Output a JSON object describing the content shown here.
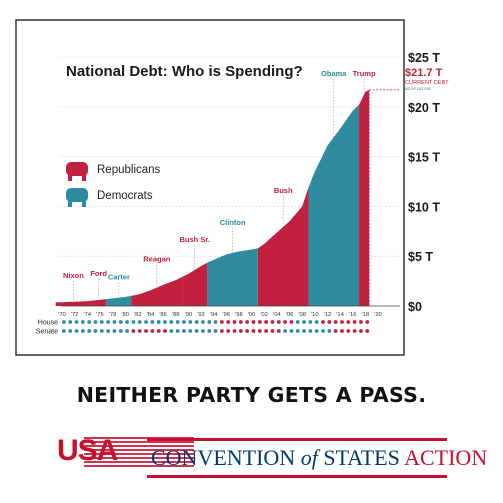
{
  "chart_data": {
    "type": "area",
    "title": "National Debt: Who is Spending?",
    "x_tick_labels": [
      "'70",
      "'72",
      "'74",
      "'76",
      "'78",
      "'80",
      "'82",
      "'84",
      "'86",
      "'88",
      "'90",
      "'92",
      "'94",
      "'96",
      "'98",
      "'00",
      "'02",
      "'04",
      "'06",
      "'08",
      "'10",
      "'12",
      "'14",
      "'16",
      "'18",
      "'20"
    ],
    "y_tick_labels": [
      "$0",
      "$5 T",
      "$10 T",
      "$15 T",
      "$20 T",
      "$25 T"
    ],
    "ylim": [
      0,
      25
    ],
    "xlim": [
      1969,
      2020
    ],
    "series": [
      {
        "name": "Republicans",
        "color": "#c0213e"
      },
      {
        "name": "Democrats",
        "color": "#2f8ca0"
      }
    ],
    "debt": [
      [
        1969,
        0.37
      ],
      [
        1970,
        0.38
      ],
      [
        1972,
        0.43
      ],
      [
        1974,
        0.48
      ],
      [
        1976,
        0.62
      ],
      [
        1978,
        0.77
      ],
      [
        1980,
        0.91
      ],
      [
        1982,
        1.14
      ],
      [
        1984,
        1.57
      ],
      [
        1986,
        2.12
      ],
      [
        1988,
        2.6
      ],
      [
        1990,
        3.23
      ],
      [
        1992,
        4.0
      ],
      [
        1993,
        4.35
      ],
      [
        1994,
        4.64
      ],
      [
        1996,
        5.18
      ],
      [
        1998,
        5.48
      ],
      [
        2000,
        5.67
      ],
      [
        2001,
        5.8
      ],
      [
        2002,
        6.23
      ],
      [
        2004,
        7.38
      ],
      [
        2006,
        8.5
      ],
      [
        2008,
        10.0
      ],
      [
        2009,
        11.9
      ],
      [
        2010,
        13.5
      ],
      [
        2012,
        16.1
      ],
      [
        2014,
        17.8
      ],
      [
        2016,
        19.6
      ],
      [
        2017,
        20.2
      ],
      [
        2018,
        21.5
      ],
      [
        2018.6,
        21.7
      ]
    ],
    "terms": [
      {
        "president": "Nixon",
        "party": "R",
        "start": 1969,
        "end": 1974.6
      },
      {
        "president": "Ford",
        "party": "R",
        "start": 1974.6,
        "end": 1977
      },
      {
        "president": "Carter",
        "party": "D",
        "start": 1977,
        "end": 1981
      },
      {
        "president": "Reagan",
        "party": "R",
        "start": 1981,
        "end": 1989
      },
      {
        "president": "Bush Sr.",
        "party": "R",
        "start": 1989,
        "end": 1993
      },
      {
        "president": "Clinton",
        "party": "D",
        "start": 1993,
        "end": 2001
      },
      {
        "president": "Bush",
        "party": "R",
        "start": 2001,
        "end": 2009
      },
      {
        "president": "Obama",
        "party": "D",
        "start": 2009,
        "end": 2017
      },
      {
        "president": "Trump",
        "party": "R",
        "start": 2017,
        "end": 2018.6
      }
    ],
    "annotation": {
      "value": "$21.7 T",
      "label": "CURRENT DEBT",
      "note": "AS OF 11/27/18"
    },
    "congress": {
      "house_label": "House",
      "senate_label": "Senate",
      "house": [
        "D",
        "D",
        "D",
        "D",
        "D",
        "D",
        "D",
        "D",
        "D",
        "D",
        "D",
        "D",
        "D",
        "R",
        "R",
        "R",
        "R",
        "R",
        "R",
        "D",
        "D",
        "R",
        "R",
        "R",
        "R"
      ],
      "senate": [
        "D",
        "D",
        "D",
        "D",
        "D",
        "D",
        "R",
        "R",
        "R",
        "D",
        "D",
        "D",
        "D",
        "R",
        "R",
        "R",
        "R",
        "R",
        "D",
        "D",
        "D",
        "D",
        "R",
        "R",
        "R"
      ]
    }
  },
  "tagline": "NEITHER PARTY GETS A PASS.",
  "logo": {
    "usa": "USA",
    "word1": "CONVENTION",
    "word2": "of",
    "word3": "STATES",
    "word4": "ACTION"
  },
  "colors": {
    "republican": "#c0213e",
    "democrat": "#2f8ca0",
    "frame": "#333333"
  }
}
